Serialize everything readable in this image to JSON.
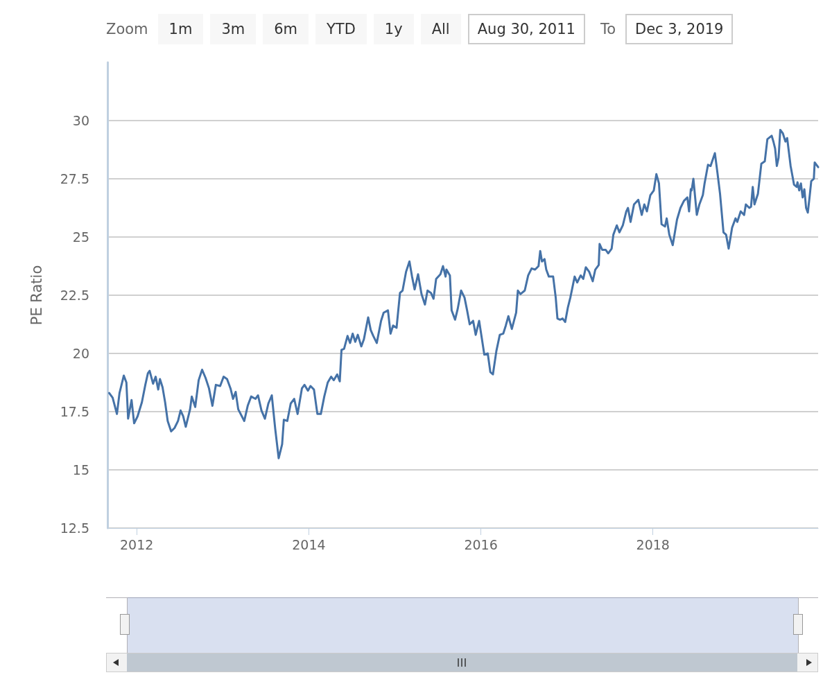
{
  "chart_data": {
    "type": "line",
    "ylabel": "PE Ratio",
    "annotations": [
      "Zoom",
      "1m",
      "3m",
      "6m",
      "YTD",
      "1y",
      "All",
      "Aug 30, 2011",
      "To",
      "Dec 3, 2019"
    ],
    "xlim": [
      2011.66,
      2019.92
    ],
    "xticks": [
      2012,
      2014,
      2016,
      2018
    ],
    "ylim": [
      12.5,
      32.5
    ],
    "yticks": [
      12.5,
      15,
      17.5,
      20,
      22.5,
      25,
      27.5,
      30
    ],
    "grid": "y",
    "marker": "none",
    "line_style": "solid",
    "series": [
      {
        "color": "#4572a7",
        "x": [
          2011.68,
          2011.72,
          2011.77,
          2011.8,
          2011.85,
          2011.88,
          2011.9,
          2011.94,
          2011.97,
          2012.01,
          2012.06,
          2012.1,
          2012.13,
          2012.15,
          2012.19,
          2012.22,
          2012.25,
          2012.27,
          2012.3,
          2012.33,
          2012.36,
          2012.4,
          2012.44,
          2012.48,
          2012.51,
          2012.54,
          2012.57,
          2012.62,
          2012.64,
          2012.68,
          2012.72,
          2012.76,
          2012.8,
          2012.84,
          2012.88,
          2012.92,
          2012.97,
          2013.01,
          2013.05,
          2013.09,
          2013.12,
          2013.15,
          2013.18,
          2013.25,
          2013.29,
          2013.33,
          2013.38,
          2013.41,
          2013.45,
          2013.49,
          2013.53,
          2013.57,
          2013.61,
          2013.65,
          2013.69,
          2013.71,
          2013.75,
          2013.79,
          2013.83,
          2013.87,
          2013.92,
          2013.95,
          2013.99,
          2014.02,
          2014.06,
          2014.1,
          2014.14,
          2014.18,
          2014.22,
          2014.26,
          2014.29,
          2014.33,
          2014.36,
          2014.38,
          2014.41,
          2014.45,
          2014.48,
          2014.51,
          2014.54,
          2014.57,
          2014.61,
          2014.64,
          2014.69,
          2014.72,
          2014.75,
          2014.79,
          2014.84,
          2014.87,
          2014.92,
          2014.95,
          2014.98,
          2015.02,
          2015.06,
          2015.09,
          2015.13,
          2015.17,
          2015.2,
          2015.23,
          2015.27,
          2015.31,
          2015.35,
          2015.38,
          2015.42,
          2015.45,
          2015.48,
          2015.53,
          2015.56,
          2015.59,
          2015.6,
          2015.64,
          2015.66,
          2015.7,
          2015.73,
          2015.77,
          2015.81,
          2015.84,
          2015.87,
          2015.91,
          2015.94,
          2015.98,
          2016.04,
          2016.08,
          2016.11,
          2016.14,
          2016.18,
          2016.22,
          2016.26,
          2016.29,
          2016.32,
          2016.36,
          2016.41,
          2016.43,
          2016.46,
          2016.51,
          2016.55,
          2016.59,
          2016.63,
          2016.67,
          2016.69,
          2016.71,
          2016.74,
          2016.76,
          2016.79,
          2016.84,
          2016.87,
          2016.89,
          2016.92,
          2016.95,
          2016.98,
          2017.01,
          2017.04,
          2017.09,
          2017.12,
          2017.16,
          2017.19,
          2017.22,
          2017.26,
          2017.3,
          2017.33,
          2017.37,
          2017.38,
          2017.41,
          2017.45,
          2017.48,
          2017.52,
          2017.54,
          2017.58,
          2017.61,
          2017.65,
          2017.69,
          2017.71,
          2017.74,
          2017.78,
          2017.83,
          2017.87,
          2017.9,
          2017.93,
          2017.97,
          2018.01,
          2018.04,
          2018.07,
          2018.1,
          2018.14,
          2018.16,
          2018.19,
          2018.23,
          2018.28,
          2018.32,
          2018.36,
          2018.4,
          2018.42,
          2018.44,
          2018.45,
          2018.47,
          2018.51,
          2018.54,
          2018.58,
          2018.6,
          2018.64,
          2018.67,
          2018.72,
          2018.75,
          2018.78,
          2018.82,
          2018.85,
          2018.88,
          2018.92,
          2018.96,
          2018.98,
          2019.02,
          2019.06,
          2019.08,
          2019.12,
          2019.14,
          2019.16,
          2019.18,
          2019.22,
          2019.26,
          2019.3,
          2019.33,
          2019.38,
          2019.4,
          2019.42,
          2019.44,
          2019.46,
          2019.48,
          2019.51,
          2019.54,
          2019.56,
          2019.59,
          2019.6,
          2019.64,
          2019.67,
          2019.68,
          2019.7,
          2019.72,
          2019.74,
          2019.76,
          2019.78,
          2019.8,
          2019.82,
          2019.84,
          2019.87,
          2019.88,
          2019.92
        ],
        "values": [
          18.3,
          18.1,
          17.4,
          18.3,
          19.05,
          18.75,
          17.2,
          18.0,
          17.0,
          17.3,
          17.9,
          18.65,
          19.15,
          19.25,
          18.7,
          19.0,
          18.45,
          18.9,
          18.55,
          17.9,
          17.1,
          16.65,
          16.8,
          17.1,
          17.55,
          17.3,
          16.85,
          17.6,
          18.15,
          17.7,
          18.85,
          19.3,
          18.95,
          18.5,
          17.75,
          18.65,
          18.6,
          19.0,
          18.9,
          18.5,
          18.05,
          18.35,
          17.6,
          17.1,
          17.75,
          18.15,
          18.05,
          18.2,
          17.55,
          17.2,
          17.85,
          18.2,
          16.75,
          15.5,
          16.1,
          17.15,
          17.1,
          17.85,
          18.05,
          17.4,
          18.5,
          18.65,
          18.4,
          18.6,
          18.45,
          17.4,
          17.4,
          18.15,
          18.75,
          19.0,
          18.85,
          19.1,
          18.8,
          20.15,
          20.2,
          20.75,
          20.45,
          20.85,
          20.5,
          20.8,
          20.3,
          20.6,
          21.55,
          21.0,
          20.75,
          20.45,
          21.4,
          21.75,
          21.85,
          20.85,
          21.2,
          21.1,
          22.6,
          22.7,
          23.5,
          23.95,
          23.3,
          22.75,
          23.4,
          22.55,
          22.1,
          22.7,
          22.6,
          22.35,
          23.2,
          23.4,
          23.75,
          23.3,
          23.6,
          23.35,
          21.85,
          21.45,
          21.9,
          22.7,
          22.4,
          21.85,
          21.25,
          21.4,
          20.8,
          21.4,
          19.95,
          20.0,
          19.2,
          19.1,
          20.1,
          20.8,
          20.85,
          21.2,
          21.6,
          21.05,
          21.75,
          22.7,
          22.55,
          22.7,
          23.35,
          23.65,
          23.6,
          23.75,
          24.4,
          23.95,
          24.05,
          23.6,
          23.3,
          23.3,
          22.4,
          21.5,
          21.45,
          21.5,
          21.35,
          21.95,
          22.4,
          23.3,
          23.05,
          23.35,
          23.2,
          23.7,
          23.5,
          23.1,
          23.6,
          23.8,
          24.7,
          24.45,
          24.45,
          24.3,
          24.5,
          25.1,
          25.5,
          25.2,
          25.5,
          26.1,
          26.25,
          25.65,
          26.4,
          26.6,
          25.95,
          26.4,
          26.1,
          26.8,
          27.0,
          27.7,
          27.3,
          25.55,
          25.45,
          25.8,
          25.1,
          24.65,
          25.75,
          26.25,
          26.55,
          26.7,
          26.1,
          27.05,
          27.0,
          27.5,
          25.95,
          26.4,
          26.8,
          27.3,
          28.1,
          28.05,
          28.6,
          27.75,
          26.85,
          25.2,
          25.1,
          24.5,
          25.4,
          25.8,
          25.65,
          26.1,
          25.95,
          26.4,
          26.25,
          26.3,
          27.15,
          26.4,
          26.85,
          28.15,
          28.25,
          29.2,
          29.35,
          29.1,
          28.8,
          28.05,
          28.4,
          29.6,
          29.45,
          29.1,
          29.25,
          28.35,
          28.05,
          27.25,
          27.15,
          27.35,
          27.0,
          27.3,
          26.7,
          27.05,
          26.25,
          26.05,
          26.7,
          27.4,
          27.5,
          28.2,
          28.0
        ]
      }
    ]
  }
}
